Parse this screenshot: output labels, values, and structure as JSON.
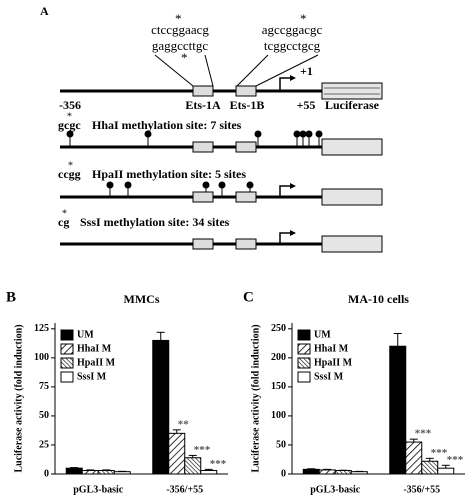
{
  "diagram": {
    "panel_label": "A",
    "sequences": [
      [
        "ctccggaacg",
        "gaggccttgc"
      ],
      [
        "agccggacgc",
        "tcggcctgcg"
      ]
    ],
    "asterisk": "*",
    "labels": {
      "start": "-356",
      "end": "+55",
      "tss": "+1",
      "ets1a": "Ets-1A",
      "ets1b": "Ets-1B",
      "reporter": "Luciferase"
    },
    "rows": [
      {
        "motif": "gcgc",
        "text": "HhaI methylation site: 7 sites"
      },
      {
        "motif": "ccgg",
        "text": "HpaII methylation site: 5 sites"
      },
      {
        "motif": "cg",
        "text": "SssI methylation site: 34 sites"
      }
    ]
  },
  "chart_data": [
    {
      "type": "bar",
      "panel_label": "B",
      "title": "MMCs",
      "y_label": "Luciferase activity (fold induction)",
      "categories": [
        "pGL3-basic",
        "-356/+55"
      ],
      "ylim": [
        0,
        130
      ],
      "yticks": [
        0,
        25,
        50,
        75,
        100,
        125
      ],
      "legend": "upper left",
      "series": [
        {
          "name": "UM",
          "color": "#000000",
          "hatch": "solid",
          "values": [
            5,
            115
          ],
          "errors": [
            0.5,
            7
          ],
          "significance": [
            null,
            null
          ]
        },
        {
          "name": "HhaI M",
          "color": "#000000",
          "hatch": "diagonal",
          "values": [
            3,
            35
          ],
          "errors": [
            0.5,
            3
          ],
          "significance": [
            null,
            "**"
          ]
        },
        {
          "name": "HpaII M",
          "color": "#000000",
          "hatch": "diagonal-dense",
          "values": [
            3,
            14
          ],
          "errors": [
            0.5,
            2
          ],
          "significance": [
            null,
            "***"
          ]
        },
        {
          "name": "SssI M",
          "color": "#ffffff",
          "hatch": "none",
          "values": [
            2,
            3
          ],
          "errors": [
            0.3,
            1
          ],
          "significance": [
            null,
            "***"
          ]
        }
      ]
    },
    {
      "type": "bar",
      "panel_label": "C",
      "title": "MA-10 cells",
      "y_label": "Luciferase activity (fold induction)",
      "categories": [
        "pGL3-basic",
        "-356/+55"
      ],
      "ylim": [
        0,
        260
      ],
      "yticks": [
        0,
        50,
        100,
        150,
        200,
        250
      ],
      "legend": "upper left",
      "series": [
        {
          "name": "UM",
          "color": "#000000",
          "hatch": "solid",
          "values": [
            8,
            220
          ],
          "errors": [
            1,
            22
          ],
          "significance": [
            null,
            null
          ]
        },
        {
          "name": "HhaI M",
          "color": "#000000",
          "hatch": "diagonal",
          "values": [
            7,
            55
          ],
          "errors": [
            1,
            5
          ],
          "significance": [
            null,
            "***"
          ]
        },
        {
          "name": "HpaII M",
          "color": "#000000",
          "hatch": "diagonal-dense",
          "values": [
            6,
            22
          ],
          "errors": [
            0.5,
            5
          ],
          "significance": [
            null,
            "***"
          ]
        },
        {
          "name": "SssI M",
          "color": "#ffffff",
          "hatch": "none",
          "values": [
            4,
            10
          ],
          "errors": [
            0.5,
            5
          ],
          "significance": [
            null,
            "***"
          ]
        }
      ]
    }
  ]
}
